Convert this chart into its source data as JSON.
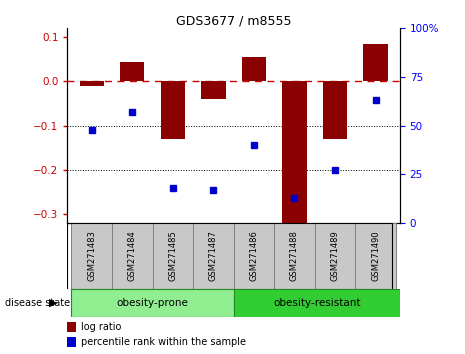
{
  "title": "GDS3677 / m8555",
  "samples": [
    "GSM271483",
    "GSM271484",
    "GSM271485",
    "GSM271487",
    "GSM271486",
    "GSM271488",
    "GSM271489",
    "GSM271490"
  ],
  "log_ratio": [
    -0.01,
    0.045,
    -0.13,
    -0.04,
    0.055,
    -0.32,
    -0.13,
    0.085
  ],
  "percentile_rank": [
    48,
    57,
    18,
    17,
    40,
    13,
    27,
    63
  ],
  "group1_label": "obesity-prone",
  "group2_label": "obesity-resistant",
  "group1_color": "#90EE90",
  "group2_color": "#32CD32",
  "bar_color": "#8B0000",
  "dot_color": "#0000CD",
  "ylim_left": [
    -0.32,
    0.12
  ],
  "ylim_right": [
    0,
    100
  ],
  "yticks_left": [
    -0.3,
    -0.2,
    -0.1,
    0.0,
    0.1
  ],
  "yticks_right": [
    0,
    25,
    50,
    75,
    100
  ],
  "disease_state_label": "disease state",
  "legend_bar_label": "log ratio",
  "legend_dot_label": "percentile rank within the sample",
  "label_box_color": "#C8C8C8",
  "label_box_edge": "#808080"
}
